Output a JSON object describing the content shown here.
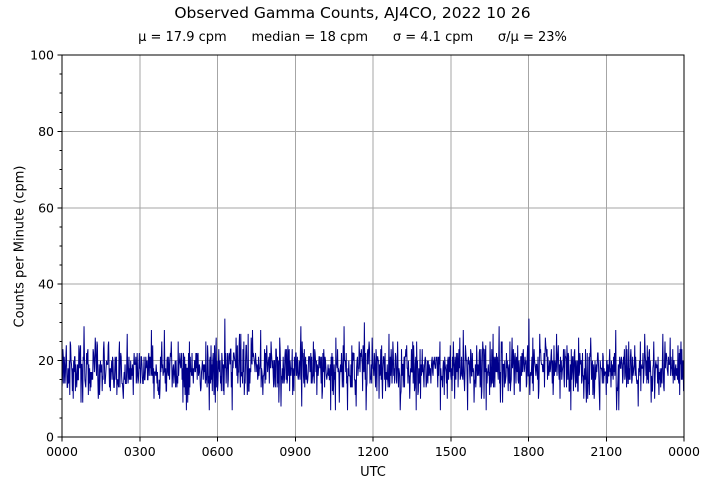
{
  "header": {
    "title": "Observed Gamma Counts, AJ4CO, 2022 10 26",
    "subtitle": "μ = 17.9 cpm      median = 18 cpm      σ = 4.1 cpm      σ/μ = 23%"
  },
  "chart_data": {
    "type": "line",
    "title": "Observed Gamma Counts, AJ4CO, 2022 10 26",
    "stats_line": "μ = 17.9 cpm      median = 18 cpm      σ = 4.1 cpm      σ/μ = 23%",
    "stats": {
      "mean_cpm": 17.9,
      "median_cpm": 18,
      "sigma_cpm": 4.1,
      "sigma_over_mu_percent": 23
    },
    "xlabel": "UTC",
    "ylabel": "Counts per Minute (cpm)",
    "x_tick_labels": [
      "0000",
      "0300",
      "0600",
      "0900",
      "1200",
      "1500",
      "1800",
      "2100",
      "0000"
    ],
    "y_tick_labels": [
      "0",
      "20",
      "40",
      "60",
      "80",
      "100"
    ],
    "y_ticks": [
      0,
      20,
      40,
      60,
      80,
      100
    ],
    "y_minor_step": 5,
    "ylim": [
      0,
      100
    ],
    "xlim_minutes": [
      0,
      1440
    ],
    "grid": true,
    "legend": "none",
    "colors": {
      "line": "#00008B",
      "grid": "#a6a6a6",
      "axis": "#000000",
      "background": "#ffffff"
    },
    "series": {
      "name": "observed gamma counts",
      "units": "counts per minute",
      "n_points": 1441,
      "sample_interval_minutes": 1,
      "value_range": [
        7,
        31
      ],
      "mean": 17.9,
      "sigma": 4.1,
      "integer_counts": true,
      "seed": 20221026
    }
  }
}
